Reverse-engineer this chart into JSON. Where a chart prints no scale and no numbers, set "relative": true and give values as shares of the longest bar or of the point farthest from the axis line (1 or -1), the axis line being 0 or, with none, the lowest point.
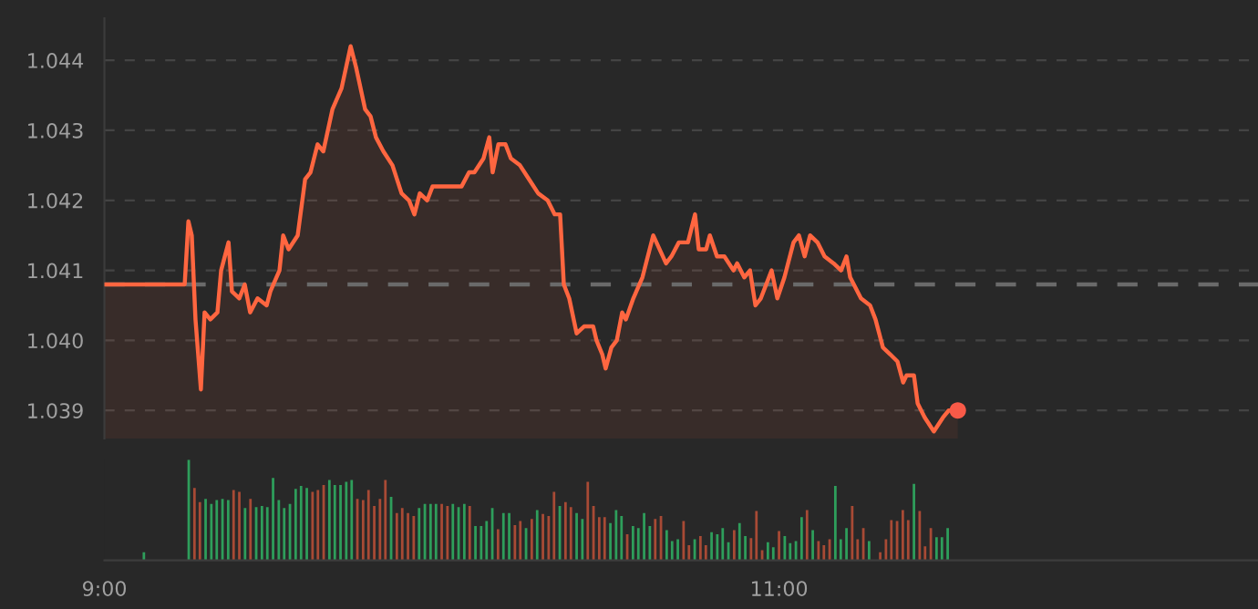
{
  "chart_data": [
    {
      "type": "area",
      "xlim": [
        9,
        12.42
      ],
      "ylim": [
        1.0386,
        1.0446
      ],
      "yticks": [
        {
          "value": 1.039,
          "label": "1.039"
        },
        {
          "value": 1.04,
          "label": "1.040"
        },
        {
          "value": 1.041,
          "label": "1.041"
        },
        {
          "value": 1.042,
          "label": "1.042"
        },
        {
          "value": 1.043,
          "label": "1.043"
        },
        {
          "value": 1.044,
          "label": "1.044"
        }
      ],
      "tick_labels": "y",
      "grid": "y",
      "ref_lines": [
        {
          "axis": "y",
          "value": 1.0408,
          "label": null,
          "color": "#6a6a6a",
          "line_style": "dashed"
        }
      ],
      "series": [
        {
          "type": "area",
          "color": "#ff6640",
          "x": [
            9.0,
            9.238,
            9.249,
            9.259,
            9.27,
            9.286,
            9.297,
            9.314,
            9.335,
            9.346,
            9.368,
            9.378,
            9.4,
            9.416,
            9.432,
            9.454,
            9.481,
            9.492,
            9.519,
            9.53,
            9.546,
            9.573,
            9.595,
            9.611,
            9.632,
            9.649,
            9.676,
            9.703,
            9.73,
            9.746,
            9.773,
            9.789,
            9.805,
            9.827,
            9.854,
            9.881,
            9.903,
            9.919,
            9.935,
            9.957,
            9.973,
            9.989,
            10.022,
            10.059,
            10.081,
            10.097,
            10.124,
            10.141,
            10.151,
            10.168,
            10.189,
            10.205,
            10.232,
            10.259,
            10.286,
            10.314,
            10.335,
            10.351,
            10.362,
            10.378,
            10.4,
            10.422,
            10.449,
            10.459,
            10.476,
            10.486,
            10.503,
            10.519,
            10.535,
            10.546,
            10.568,
            10.595,
            10.627,
            10.665,
            10.681,
            10.703,
            10.719,
            10.73,
            10.751,
            10.762,
            10.784,
            10.795,
            10.816,
            10.838,
            10.865,
            10.876,
            10.897,
            10.914,
            10.93,
            10.946,
            10.978,
            10.995,
            11.016,
            11.043,
            11.059,
            11.076,
            11.092,
            11.114,
            11.135,
            11.162,
            11.184,
            11.2,
            11.211,
            11.243,
            11.27,
            11.286,
            11.308,
            11.33,
            11.351,
            11.368,
            11.378,
            11.4,
            11.411,
            11.432,
            11.459,
            11.486,
            11.503,
            11.53
          ],
          "values": [
            1.0408,
            1.0408,
            1.0417,
            1.0415,
            1.0403,
            1.0393,
            1.0404,
            1.0403,
            1.0404,
            1.041,
            1.0414,
            1.0407,
            1.0406,
            1.0408,
            1.0404,
            1.0406,
            1.0405,
            1.0407,
            1.041,
            1.0415,
            1.0413,
            1.0415,
            1.0423,
            1.0424,
            1.0428,
            1.0427,
            1.0433,
            1.0436,
            1.0442,
            1.0439,
            1.0433,
            1.0432,
            1.0429,
            1.0427,
            1.0425,
            1.0421,
            1.042,
            1.0418,
            1.0421,
            1.042,
            1.0422,
            1.0422,
            1.0422,
            1.0422,
            1.0424,
            1.0424,
            1.0426,
            1.0429,
            1.0424,
            1.0428,
            1.0428,
            1.0426,
            1.0425,
            1.0423,
            1.0421,
            1.042,
            1.0418,
            1.0418,
            1.0408,
            1.0406,
            1.0401,
            1.0402,
            1.0402,
            1.04,
            1.0398,
            1.0396,
            1.0399,
            1.04,
            1.0404,
            1.0403,
            1.0406,
            1.0409,
            1.0415,
            1.0411,
            1.0412,
            1.0414,
            1.0414,
            1.0414,
            1.0418,
            1.0413,
            1.0413,
            1.0415,
            1.0412,
            1.0412,
            1.041,
            1.0411,
            1.0409,
            1.041,
            1.0405,
            1.0406,
            1.041,
            1.0406,
            1.0409,
            1.0414,
            1.0415,
            1.0412,
            1.0415,
            1.0414,
            1.0412,
            1.0411,
            1.041,
            1.0412,
            1.0409,
            1.0406,
            1.0405,
            1.0403,
            1.0399,
            1.0398,
            1.0397,
            1.0394,
            1.0395,
            1.0395,
            1.0391,
            1.0389,
            1.0387,
            1.0389,
            1.039,
            1.039
          ]
        },
        {
          "type": "scatter",
          "color": "#f85a48",
          "marker": "circle",
          "x": [
            11.53
          ],
          "values": [
            1.039
          ]
        }
      ]
    },
    {
      "type": "bar",
      "relative": true,
      "xlim": [
        9,
        12.42
      ],
      "xticks": [
        {
          "value": 9,
          "label": "9:00"
        },
        {
          "value": 11,
          "label": "11:00"
        }
      ],
      "tick_labels": "x",
      "x": [
        9.117,
        9.25,
        9.267,
        9.283,
        9.3,
        9.317,
        9.333,
        9.35,
        9.367,
        9.383,
        9.4,
        9.417,
        9.433,
        9.45,
        9.467,
        9.483,
        9.5,
        9.517,
        9.533,
        9.55,
        9.567,
        9.583,
        9.6,
        9.617,
        9.633,
        9.65,
        9.667,
        9.683,
        9.7,
        9.717,
        9.733,
        9.75,
        9.767,
        9.783,
        9.8,
        9.817,
        9.833,
        9.85,
        9.867,
        9.883,
        9.9,
        9.917,
        9.933,
        9.95,
        9.967,
        9.983,
        10.0,
        10.017,
        10.033,
        10.05,
        10.067,
        10.083,
        10.1,
        10.117,
        10.133,
        10.15,
        10.167,
        10.183,
        10.2,
        10.217,
        10.233,
        10.25,
        10.267,
        10.283,
        10.3,
        10.317,
        10.333,
        10.35,
        10.367,
        10.383,
        10.4,
        10.417,
        10.433,
        10.45,
        10.467,
        10.483,
        10.5,
        10.517,
        10.533,
        10.55,
        10.567,
        10.583,
        10.6,
        10.617,
        10.633,
        10.65,
        10.667,
        10.683,
        10.7,
        10.717,
        10.733,
        10.75,
        10.767,
        10.783,
        10.8,
        10.817,
        10.833,
        10.85,
        10.867,
        10.883,
        10.9,
        10.917,
        10.933,
        10.95,
        10.967,
        10.983,
        11.0,
        11.017,
        11.033,
        11.05,
        11.067,
        11.083,
        11.1,
        11.117,
        11.133,
        11.15,
        11.167,
        11.183,
        11.2,
        11.217,
        11.233,
        11.25,
        11.267,
        11.283,
        11.3,
        11.317,
        11.333,
        11.35,
        11.367,
        11.383,
        11.4,
        11.417,
        11.433,
        11.45,
        11.467,
        11.483,
        11.5
      ],
      "values": [
        0.08,
        1.0,
        0.72,
        0.58,
        0.61,
        0.56,
        0.6,
        0.61,
        0.6,
        0.7,
        0.68,
        0.52,
        0.61,
        0.53,
        0.54,
        0.53,
        0.82,
        0.6,
        0.52,
        0.56,
        0.71,
        0.74,
        0.72,
        0.68,
        0.7,
        0.75,
        0.8,
        0.75,
        0.75,
        0.78,
        0.8,
        0.61,
        0.6,
        0.7,
        0.54,
        0.61,
        0.8,
        0.63,
        0.47,
        0.52,
        0.47,
        0.44,
        0.52,
        0.56,
        0.56,
        0.56,
        0.56,
        0.54,
        0.56,
        0.53,
        0.56,
        0.54,
        0.34,
        0.34,
        0.39,
        0.52,
        0.31,
        0.47,
        0.47,
        0.35,
        0.39,
        0.32,
        0.41,
        0.5,
        0.46,
        0.44,
        0.68,
        0.54,
        0.58,
        0.53,
        0.47,
        0.41,
        0.78,
        0.54,
        0.43,
        0.43,
        0.37,
        0.5,
        0.44,
        0.26,
        0.34,
        0.32,
        0.47,
        0.34,
        0.41,
        0.44,
        0.3,
        0.19,
        0.21,
        0.39,
        0.15,
        0.21,
        0.24,
        0.15,
        0.28,
        0.26,
        0.32,
        0.18,
        0.3,
        0.37,
        0.24,
        0.22,
        0.49,
        0.1,
        0.18,
        0.13,
        0.29,
        0.24,
        0.17,
        0.19,
        0.43,
        0.5,
        0.3,
        0.19,
        0.15,
        0.21,
        0.74,
        0.21,
        0.32,
        0.54,
        0.21,
        0.32,
        0.19,
        null,
        0.08,
        0.21,
        0.4,
        0.39,
        0.5,
        0.4,
        0.76,
        0.49,
        0.14,
        0.32,
        0.23,
        0.23,
        0.32
      ],
      "colors": [
        "#2e9e5b",
        "#2e9e5b",
        "#a84a35",
        "#a84a35",
        "#2e9e5b",
        "#2e9e5b",
        "#2e9e5b",
        "#2e9e5b",
        "#2e9e5b",
        "#a84a35",
        "#a84a35",
        "#2e9e5b",
        "#a84a35",
        "#2e9e5b",
        "#2e9e5b",
        "#2e9e5b",
        "#2e9e5b",
        "#2e9e5b",
        "#2e9e5b",
        "#2e9e5b",
        "#2e9e5b",
        "#2e9e5b",
        "#2e9e5b",
        "#a84a35",
        "#a84a35",
        "#a84a35",
        "#2e9e5b",
        "#2e9e5b",
        "#2e9e5b",
        "#2e9e5b",
        "#2e9e5b",
        "#a84a35",
        "#a84a35",
        "#a84a35",
        "#a84a35",
        "#a84a35",
        "#a84a35",
        "#2e9e5b",
        "#a84a35",
        "#a84a35",
        "#a84a35",
        "#a84a35",
        "#2e9e5b",
        "#2e9e5b",
        "#2e9e5b",
        "#2e9e5b",
        "#a84a35",
        "#a84a35",
        "#2e9e5b",
        "#2e9e5b",
        "#2e9e5b",
        "#a84a35",
        "#2e9e5b",
        "#2e9e5b",
        "#2e9e5b",
        "#2e9e5b",
        "#a84a35",
        "#2e9e5b",
        "#2e9e5b",
        "#a84a35",
        "#a84a35",
        "#2e9e5b",
        "#a84a35",
        "#2e9e5b",
        "#a84a35",
        "#a84a35",
        "#a84a35",
        "#2e9e5b",
        "#a84a35",
        "#a84a35",
        "#2e9e5b",
        "#2e9e5b",
        "#a84a35",
        "#a84a35",
        "#a84a35",
        "#a84a35",
        "#2e9e5b",
        "#2e9e5b",
        "#2e9e5b",
        "#a84a35",
        "#2e9e5b",
        "#2e9e5b",
        "#2e9e5b",
        "#2e9e5b",
        "#a84a35",
        "#a84a35",
        "#2e9e5b",
        "#2e9e5b",
        "#2e9e5b",
        "#a84a35",
        "#a84a35",
        "#2e9e5b",
        "#a84a35",
        "#a84a35",
        "#2e9e5b",
        "#2e9e5b",
        "#2e9e5b",
        "#2e9e5b",
        "#a84a35",
        "#2e9e5b",
        "#2e9e5b",
        "#a84a35",
        "#a84a35",
        "#a84a35",
        "#2e9e5b",
        "#2e9e5b",
        "#a84a35",
        "#2e9e5b",
        "#2e9e5b",
        "#2e9e5b",
        "#2e9e5b",
        "#a84a35",
        "#2e9e5b",
        "#a84a35",
        "#a84a35",
        "#a84a35",
        "#2e9e5b",
        "#2e9e5b",
        "#2e9e5b",
        "#a84a35",
        "#a84a35",
        "#a84a35",
        "#2e9e5b",
        "#2e9e5b",
        "#a84a35",
        "#a84a35",
        "#a84a35",
        "#a84a35",
        "#a84a35",
        "#a84a35",
        "#2e9e5b",
        "#a84a35",
        "#a84a35",
        "#a84a35",
        "#2e9e5b",
        "#2e9e5b",
        "#2e9e5b"
      ]
    }
  ]
}
